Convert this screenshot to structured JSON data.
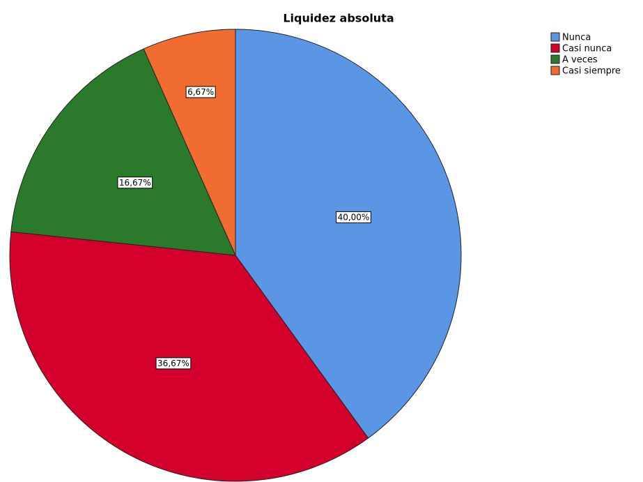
{
  "chart_data": {
    "type": "pie",
    "title": "Liquidez absoluta",
    "categories": [
      "Nunca",
      "Casi nunca",
      "A veces",
      "Casi siempre"
    ],
    "values": [
      40.0,
      36.67,
      16.67,
      6.67
    ],
    "value_labels": [
      "40,00%",
      "36,67%",
      "16,67%",
      "6,67%"
    ],
    "colors": [
      "#5a96e3",
      "#d3002c",
      "#2b7a2b",
      "#f06c30"
    ],
    "legend": "right"
  }
}
